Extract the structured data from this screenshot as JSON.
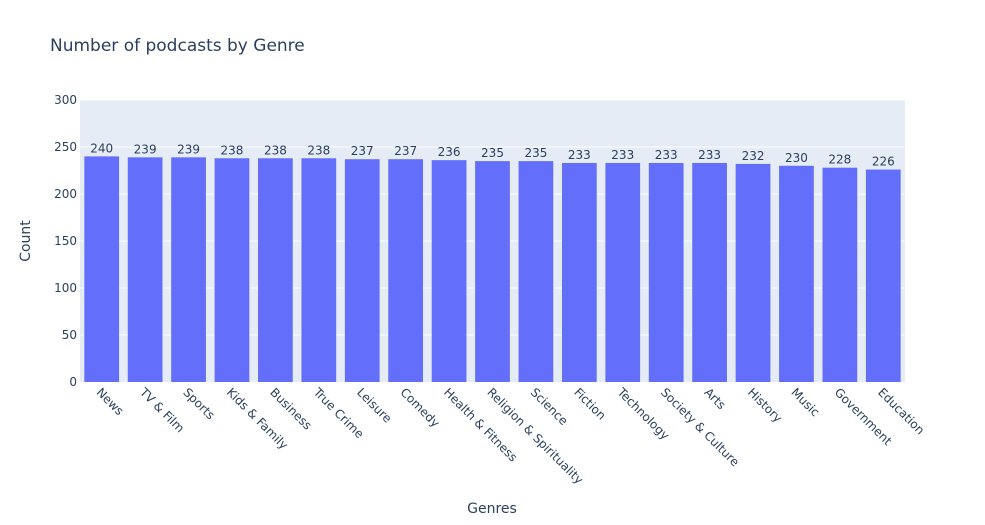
{
  "colors": {
    "plot_bg": "#E5ECF6",
    "bar": "#636EFA",
    "grid": "#ffffff",
    "text": "#2a3f5f"
  },
  "chart_data": {
    "type": "bar",
    "title": "Number of podcasts by Genre",
    "xlabel": "Genres",
    "ylabel": "Count",
    "ylim": [
      0,
      300
    ],
    "yticks": [
      0,
      50,
      100,
      150,
      200,
      250,
      300
    ],
    "categories": [
      "News",
      "TV & Film",
      "Sports",
      "Kids & Family",
      "Business",
      "True Crime",
      "Leisure",
      "Comedy",
      "Health & Fitness",
      "Religion & Spirituality",
      "Science",
      "Fiction",
      "Technology",
      "Society & Culture",
      "Arts",
      "History",
      "Music",
      "Government",
      "Education"
    ],
    "values": [
      240,
      239,
      239,
      238,
      238,
      238,
      237,
      237,
      236,
      235,
      235,
      233,
      233,
      233,
      233,
      232,
      230,
      228,
      226
    ],
    "grid": true,
    "legend": "none",
    "data_labels": true
  }
}
